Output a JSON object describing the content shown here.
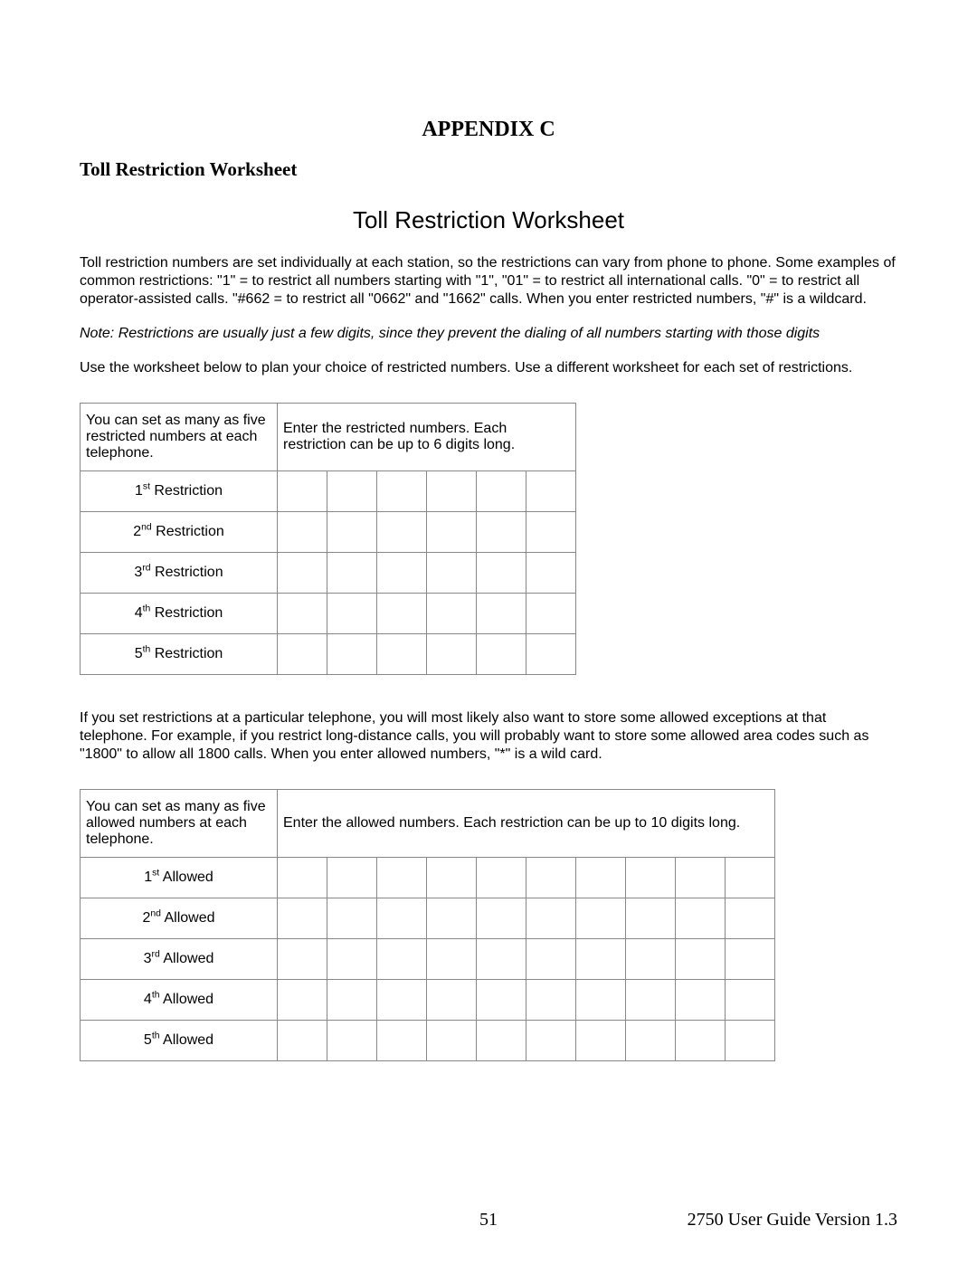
{
  "appendix_title": "APPENDIX C",
  "section_heading": "Toll Restriction Worksheet",
  "worksheet_title": "Toll Restriction Worksheet",
  "para1": "Toll restriction numbers are set individually at each station, so the restrictions can vary from phone to phone.  Some examples of common restrictions:  \"1\" = to restrict all numbers starting with \"1\", \"01\" = to restrict all international calls. \"0\" = to restrict all operator-assisted calls.  \"#662 = to restrict all \"0662\" and \"1662\" calls.  When you enter restricted numbers, \"#\" is a wildcard.",
  "note": "Note: Restrictions are usually just a few digits, since they prevent the dialing of all numbers starting with those digits",
  "para2": "Use the worksheet below to plan your choice of restricted numbers.  Use a different worksheet for each set of restrictions.",
  "restrict_table": {
    "desc": "You can set as many as five restricted numbers at each telephone.",
    "instr": "Enter the restricted numbers. Each restriction can be up to 6 digits long.",
    "digit_count": 6,
    "rows": [
      {
        "ord": "1",
        "sup": "st",
        "label": " Restriction"
      },
      {
        "ord": "2",
        "sup": "nd",
        "label": " Restriction"
      },
      {
        "ord": "3",
        "sup": "rd",
        "label": " Restriction"
      },
      {
        "ord": "4",
        "sup": "th",
        "label": " Restriction"
      },
      {
        "ord": "5",
        "sup": "th",
        "label": " Restriction"
      }
    ]
  },
  "para3": "If you set restrictions at a particular telephone, you will most likely also want to store some allowed exceptions at that telephone. For example, if you restrict long-distance calls, you will probably want to store some allowed area codes such as \"1800\" to allow all 1800 calls.  When you enter allowed numbers, \"*\" is a wild card.",
  "allowed_table": {
    "desc": "You can set as many as five allowed numbers at each telephone.",
    "instr": "Enter the allowed numbers. Each restriction can be up to 10 digits long.",
    "digit_count": 10,
    "rows": [
      {
        "ord": "1",
        "sup": "st",
        "label": " Allowed"
      },
      {
        "ord": "2",
        "sup": "nd",
        "label": " Allowed"
      },
      {
        "ord": "3",
        "sup": "rd",
        "label": " Allowed"
      },
      {
        "ord": "4",
        "sup": "th",
        "label": " Allowed"
      },
      {
        "ord": "5",
        "sup": "th",
        "label": " Allowed"
      }
    ]
  },
  "footer": {
    "page": "51",
    "version": "2750 User Guide Version 1.3"
  },
  "colors": {
    "text": "#000000",
    "background": "#ffffff",
    "border": "#888888"
  },
  "fonts": {
    "serif": "Times New Roman",
    "sans": "Arial"
  }
}
